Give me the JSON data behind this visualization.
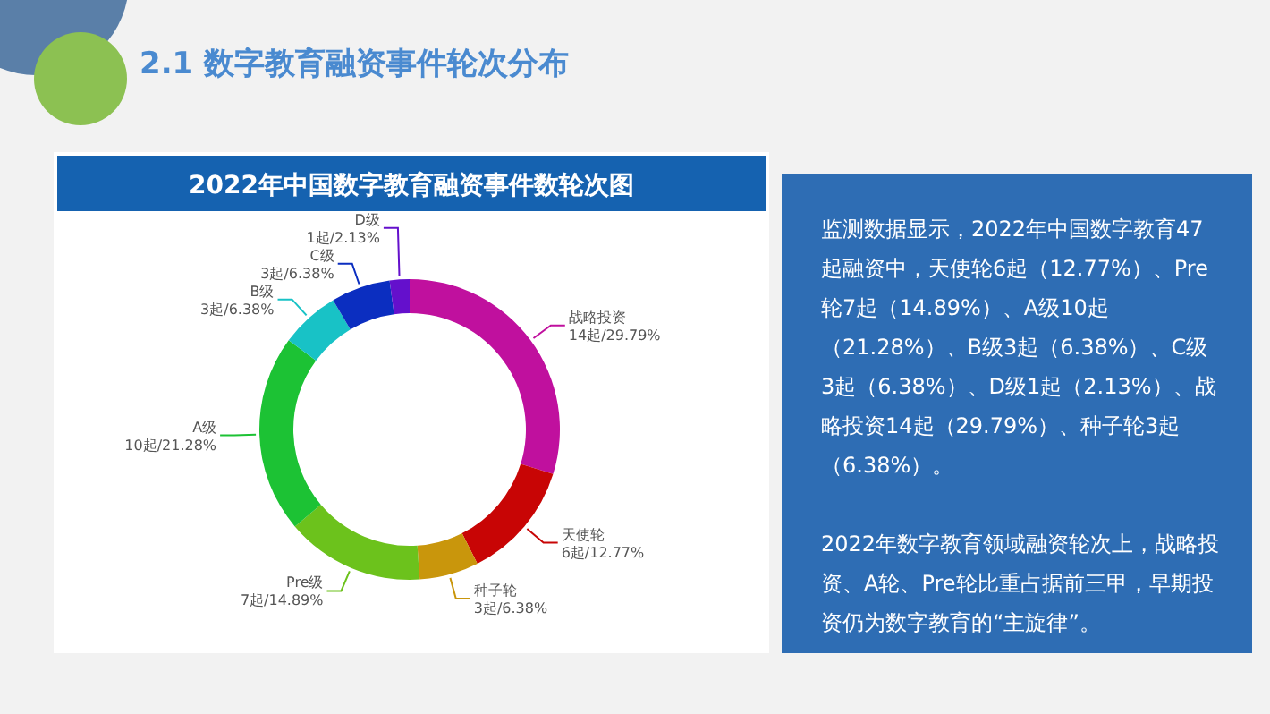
{
  "chart_data": {
    "type": "donut",
    "title": "2022年中国数字教育融资事件数轮次图",
    "subtitle": "2.1 数字教育融资事件轮次分布",
    "categories": [
      "战略投资",
      "天使轮",
      "种子轮",
      "Pre级",
      "A级",
      "B级",
      "C级",
      "D级"
    ],
    "values": [
      14,
      6,
      3,
      7,
      10,
      3,
      3,
      1
    ],
    "value_labels": [
      "14起/29.79%",
      "6起/12.77%",
      "3起/6.38%",
      "7起/14.89%",
      "10起/21.28%",
      "3起/6.38%",
      "3起/6.38%",
      "1起/2.13%"
    ],
    "colors": [
      "#c0109e",
      "#c80505",
      "#c9960c",
      "#6cc21c",
      "#1cc234",
      "#18c2c6",
      "#0b2ec0",
      "#6410cc"
    ],
    "annotations": [
      "监测数据显示，2022年中国数字教育47起融资中，天使轮6起（12.77%）、Pre轮7起（14.89%）、A级10起（21.28%）、B级3起（6.38%）、C级3起（6.38%）、D级1起（2.13%）、战略投资14起（29.79%）、种子轮3起（6.38%）。",
      "2022年数字教育领域融资轮次上，战略投资、A轮、Pre轮比重占据前三甲，早期投资仍为数字教育的“主旋律”。"
    ],
    "legend": false
  }
}
